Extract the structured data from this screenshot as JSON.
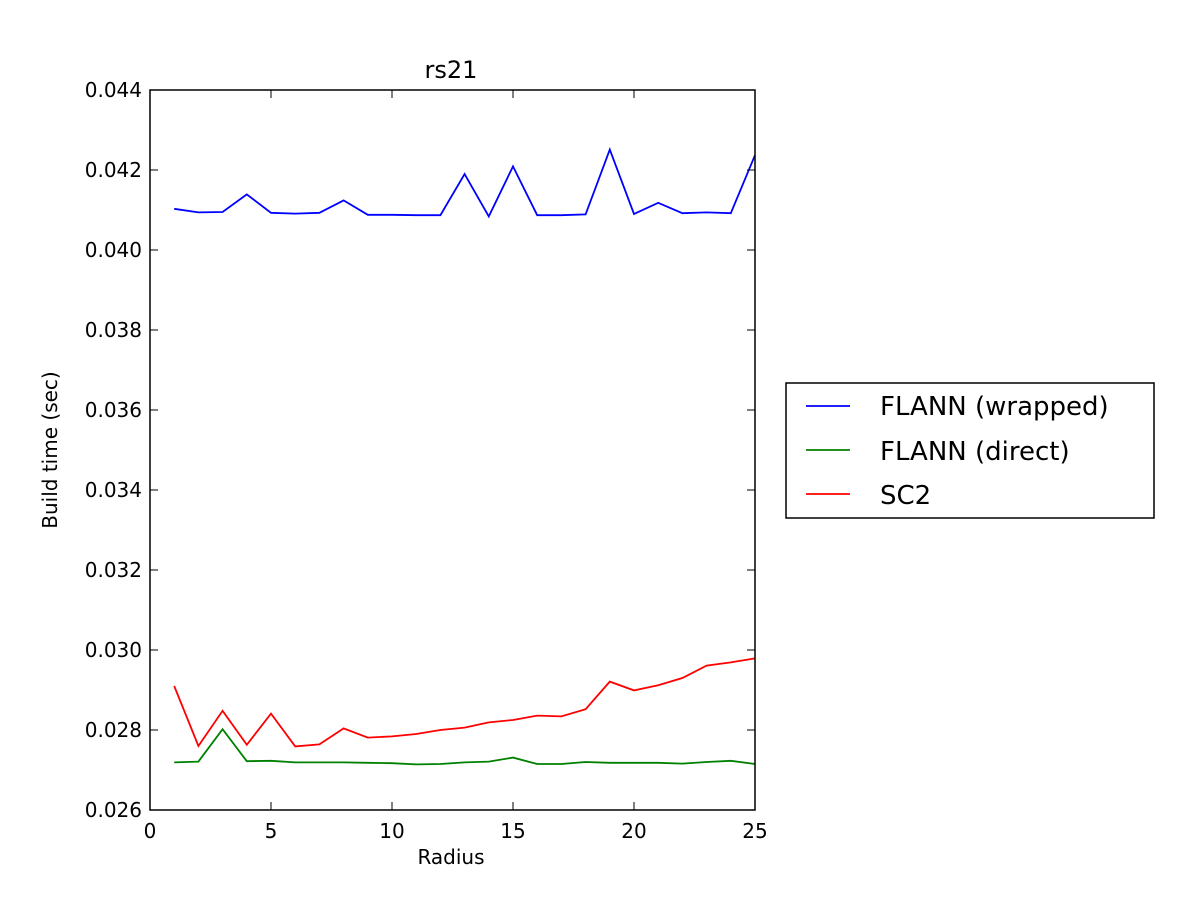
{
  "chart_data": {
    "type": "line",
    "title": "rs21",
    "xlabel": "Radius",
    "ylabel": "Build time (sec)",
    "xlim": [
      0,
      25
    ],
    "ylim": [
      0.026,
      0.044
    ],
    "x_ticks": [
      "0",
      "5",
      "10",
      "15",
      "20",
      "25"
    ],
    "y_ticks": [
      "0.026",
      "0.028",
      "0.030",
      "0.032",
      "0.034",
      "0.036",
      "0.038",
      "0.040",
      "0.042",
      "0.044"
    ],
    "grid": false,
    "legend_position": "right, outside plot",
    "x": [
      1,
      2,
      3,
      4,
      5,
      6,
      7,
      8,
      9,
      10,
      11,
      12,
      13,
      14,
      15,
      16,
      17,
      18,
      19,
      20,
      21,
      22,
      23,
      24,
      25
    ],
    "series": [
      {
        "name": "FLANN (wrapped)",
        "color": "#0000ff",
        "values": [
          0.04103,
          0.04094,
          0.04095,
          0.04139,
          0.04093,
          0.04091,
          0.04093,
          0.04124,
          0.04088,
          0.04088,
          0.04087,
          0.04087,
          0.0419,
          0.04084,
          0.04209,
          0.04087,
          0.04087,
          0.04089,
          0.04251,
          0.0409,
          0.04118,
          0.04092,
          0.04094,
          0.04092,
          0.04237
        ]
      },
      {
        "name": "FLANN (direct)",
        "color": "#008000",
        "values": [
          0.02719,
          0.02721,
          0.02802,
          0.02722,
          0.02723,
          0.02719,
          0.02719,
          0.02719,
          0.02718,
          0.02717,
          0.02714,
          0.02715,
          0.02719,
          0.02721,
          0.02731,
          0.02715,
          0.02715,
          0.0272,
          0.02718,
          0.02718,
          0.02718,
          0.02716,
          0.0272,
          0.02723,
          0.02715
        ]
      },
      {
        "name": "SC2",
        "color": "#ff0000",
        "values": [
          0.0291,
          0.0276,
          0.02848,
          0.02763,
          0.02841,
          0.02759,
          0.02764,
          0.02804,
          0.02781,
          0.02784,
          0.0279,
          0.028,
          0.02806,
          0.02819,
          0.02825,
          0.02836,
          0.02834,
          0.02852,
          0.02921,
          0.02899,
          0.02912,
          0.0293,
          0.02961,
          0.02969,
          0.02979
        ]
      }
    ]
  }
}
